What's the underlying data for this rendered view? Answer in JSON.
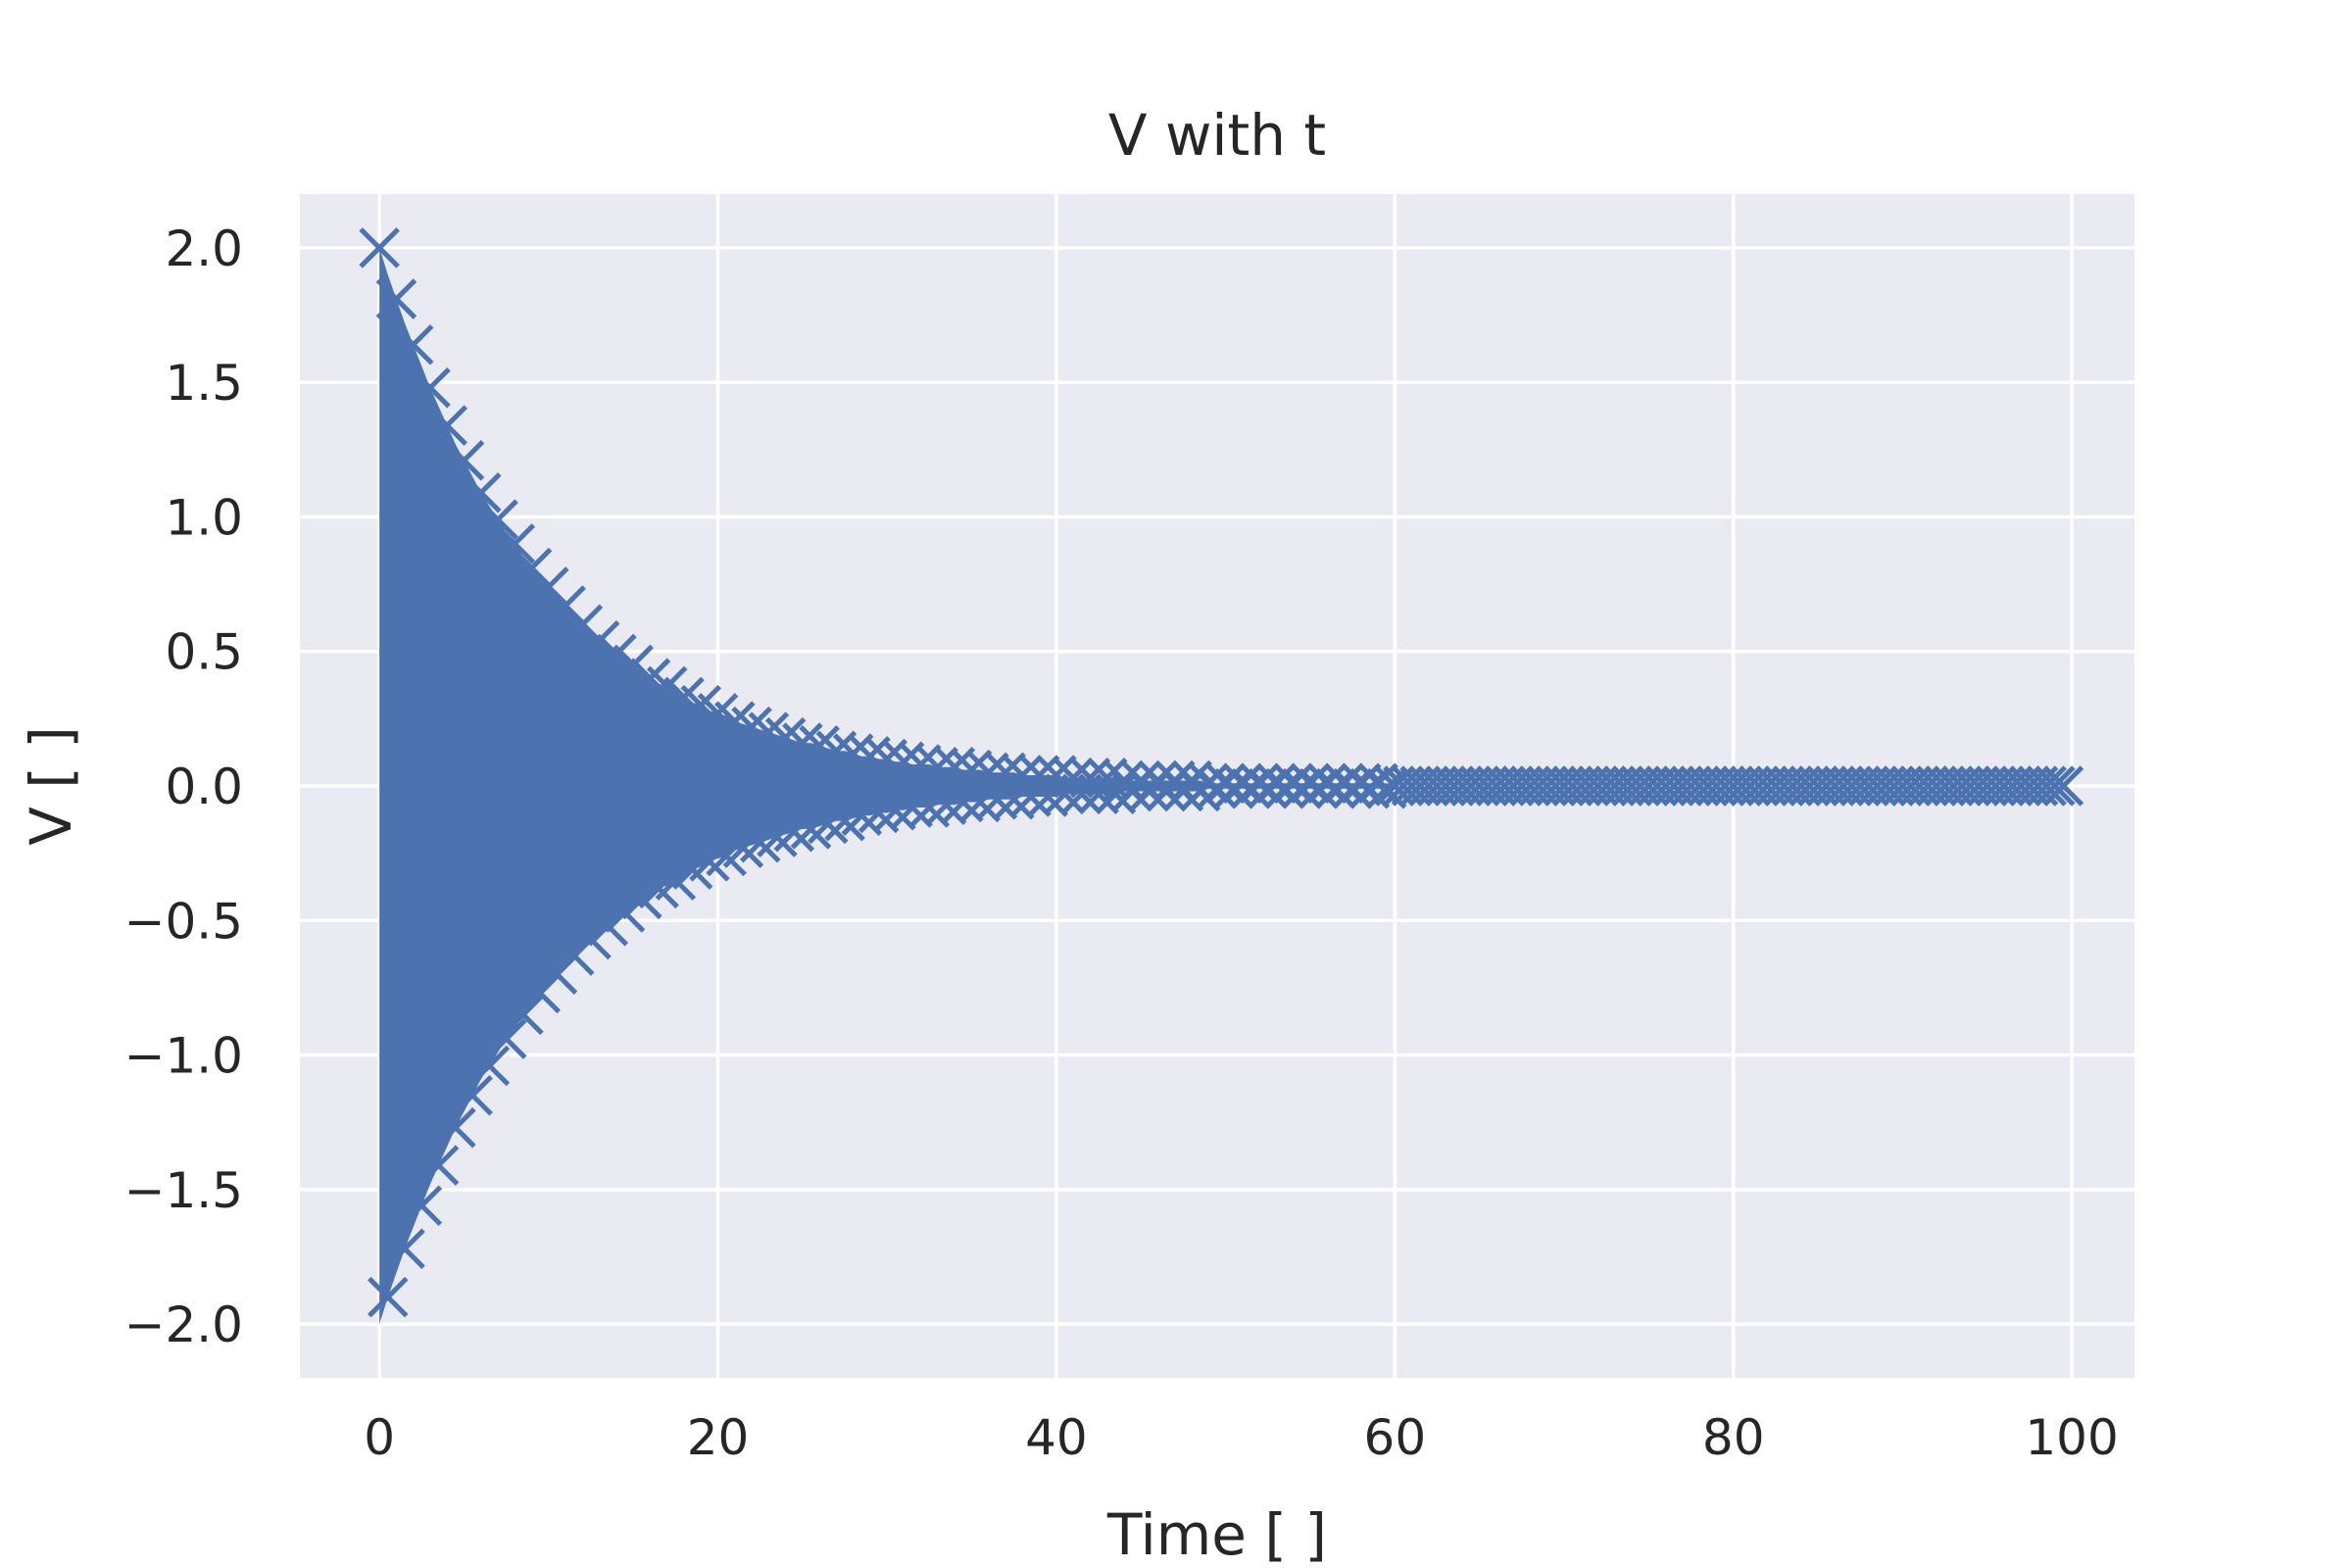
{
  "chart_data": {
    "type": "scatter",
    "title": "V with t",
    "xlabel": "Time [ ]",
    "ylabel": "V [ ]",
    "xlim": [
      -4.7,
      103.7
    ],
    "ylim": [
      -2.2,
      2.2
    ],
    "xticks": [
      {
        "value": 0,
        "label": "0"
      },
      {
        "value": 20,
        "label": "20"
      },
      {
        "value": 40,
        "label": "40"
      },
      {
        "value": 60,
        "label": "60"
      },
      {
        "value": 80,
        "label": "80"
      },
      {
        "value": 100,
        "label": "100"
      }
    ],
    "yticks": [
      {
        "value": 2.0,
        "label": "2.0"
      },
      {
        "value": 1.5,
        "label": "1.5"
      },
      {
        "value": 1.0,
        "label": "1.0"
      },
      {
        "value": 0.5,
        "label": "0.5"
      },
      {
        "value": 0.0,
        "label": "0.0"
      },
      {
        "value": -0.5,
        "label": "−0.5"
      },
      {
        "value": -1.0,
        "label": "−1.0"
      },
      {
        "value": -1.5,
        "label": "−1.5"
      },
      {
        "value": -2.0,
        "label": "−2.0"
      }
    ],
    "grid": true,
    "legend": "none",
    "series": [
      {
        "marker": "x",
        "color": "#4c72b0",
        "x": [
          0,
          0.5,
          1,
          1.5,
          2,
          2.5,
          3,
          3.5,
          4,
          4.5,
          5,
          5.5,
          6,
          6.5,
          7,
          7.5,
          8,
          8.5,
          9,
          9.5,
          10,
          10.5,
          11,
          11.5,
          12,
          12.5,
          13,
          13.5,
          14,
          14.5,
          15,
          15.5,
          16,
          16.5,
          17,
          17.5,
          18,
          18.5,
          19,
          19.5,
          20,
          20.5,
          21,
          21.5,
          22,
          22.5,
          23,
          23.5,
          24,
          24.5,
          25,
          25.5,
          26,
          26.5,
          27,
          27.5,
          28,
          28.5,
          29,
          29.5,
          30,
          30.5,
          31,
          31.5,
          32,
          32.5,
          33,
          33.5,
          34,
          34.5,
          35,
          35.5,
          36,
          36.5,
          37,
          37.5,
          38,
          38.5,
          39,
          39.5,
          40,
          40.5,
          41,
          41.5,
          42,
          42.5,
          43,
          43.5,
          44,
          44.5,
          45,
          45.5,
          46,
          46.5,
          47,
          47.5,
          48,
          48.5,
          49,
          49.5,
          50,
          50.5,
          51,
          51.5,
          52,
          52.5,
          53,
          53.5,
          54,
          54.5,
          55,
          55.5,
          56,
          56.5,
          57,
          57.5,
          58,
          58.5,
          59,
          59.5,
          60,
          60.5,
          61,
          61.5,
          62,
          62.5,
          63,
          63.5,
          64,
          64.5,
          65,
          65.5,
          66,
          66.5,
          67,
          67.5,
          68,
          68.5,
          69,
          69.5,
          70,
          70.5,
          71,
          71.5,
          72,
          72.5,
          73,
          73.5,
          74,
          74.5,
          75,
          75.5,
          76,
          76.5,
          77,
          77.5,
          78,
          78.5,
          79,
          79.5,
          80,
          80.5,
          81,
          81.5,
          82,
          82.5,
          83,
          83.5,
          84,
          84.5,
          85,
          85.5,
          86,
          86.5,
          87,
          87.5,
          88,
          88.5,
          89,
          89.5,
          90,
          90.5,
          91,
          91.5,
          92,
          92.5,
          93,
          93.5,
          94,
          94.5,
          95,
          95.5,
          96,
          96.5,
          97,
          97.5,
          98,
          98.5,
          99,
          99.5
        ],
        "y": [
          2,
          -1.9,
          1.81,
          -1.72,
          1.64,
          -1.56,
          1.48,
          -1.41,
          1.34,
          -1.27,
          1.21,
          -1.15,
          1.09,
          -1.04,
          0.99,
          -0.94,
          0.9,
          -0.85,
          0.81,
          -0.77,
          0.74,
          -0.7,
          0.67,
          -0.63,
          0.6,
          -0.57,
          0.54,
          -0.52,
          0.49,
          -0.47,
          0.45,
          -0.42,
          0.4,
          -0.38,
          0.37,
          -0.35,
          0.33,
          -0.31,
          0.3,
          -0.28,
          0.27,
          -0.26,
          0.24,
          -0.23,
          0.22,
          -0.21,
          0.2,
          -0.19,
          0.18,
          -0.17,
          0.16,
          -0.16,
          0.15,
          -0.14,
          0.13,
          -0.13,
          0.12,
          -0.11,
          0.11,
          -0.1,
          0.1,
          -0.09,
          0.09,
          -0.08,
          0.08,
          -0.08,
          0.07,
          -0.07,
          0.07,
          -0.06,
          0.06,
          -0.06,
          0.05,
          -0.05,
          0.05,
          -0.05,
          0.04,
          -0.04,
          0.04,
          -0.04,
          0.04,
          -0.03,
          0.03,
          -0.03,
          0.03,
          -0.03,
          0.03,
          -0.03,
          0.02,
          -0.02,
          0.02,
          -0.02,
          0.02,
          -0.02,
          0.02,
          -0.02,
          0.02,
          -0.02,
          0.01,
          -0.01,
          0.01,
          -0.01,
          0.01,
          -0.01,
          0.01,
          -0.01,
          0.01,
          -0.01,
          0.01,
          -0.01,
          0.01,
          -0.01,
          0.01,
          -0.01,
          0.01,
          -0.01,
          0.01,
          -0.01,
          0.01,
          -0.01,
          0,
          0,
          0,
          0,
          0,
          0,
          0,
          0,
          0,
          0,
          0,
          0,
          0,
          0,
          0,
          0,
          0,
          0,
          0,
          0,
          0,
          0,
          0,
          0,
          0,
          0,
          0,
          0,
          0,
          0,
          0,
          0,
          0,
          0,
          0,
          0,
          0,
          0,
          0,
          0,
          0,
          0,
          0,
          0,
          0,
          0,
          0,
          0,
          0,
          0,
          0,
          0,
          0,
          0,
          0,
          0,
          0,
          0,
          0,
          0,
          0,
          0,
          0,
          0,
          0,
          0,
          0,
          0,
          0,
          0,
          0,
          0,
          0,
          0,
          0,
          0,
          0,
          0,
          0,
          0
        ]
      }
    ]
  },
  "style": {
    "plot_background": "#eaeaf2",
    "grid_color": "#ffffff",
    "marker_color": "#4c72b0",
    "text_color": "#262626"
  }
}
